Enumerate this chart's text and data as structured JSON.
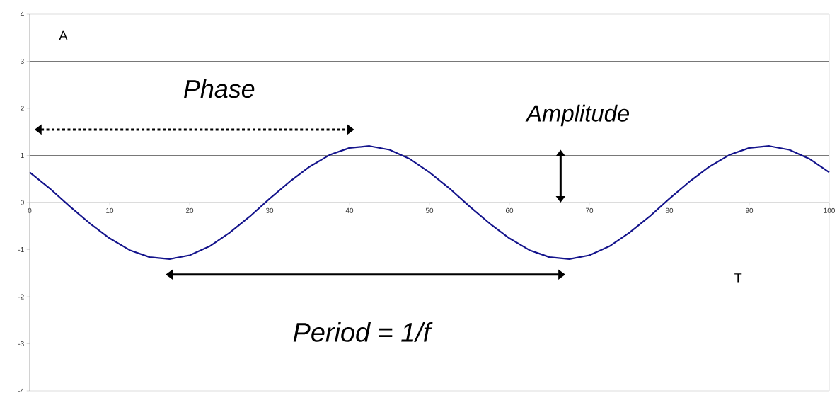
{
  "chart_data": {
    "type": "line",
    "x": [
      0,
      2.5,
      5,
      7.5,
      10,
      12.5,
      15,
      17.5,
      20,
      22.5,
      25,
      27.5,
      30,
      32.5,
      35,
      37.5,
      40,
      42.5,
      45,
      47.5,
      50,
      52.5,
      55,
      57.5,
      60,
      62.5,
      65,
      67.5,
      70,
      72.5,
      75,
      77.5,
      80,
      82.5,
      85,
      87.5,
      90,
      92.5,
      95,
      97.5,
      100
    ],
    "series": [
      {
        "color": "#14148c",
        "values": [
          0.64,
          0.3,
          -0.08,
          -0.44,
          -0.76,
          -1.01,
          -1.16,
          -1.2,
          -1.12,
          -0.93,
          -0.64,
          -0.3,
          0.08,
          0.44,
          0.76,
          1.01,
          1.16,
          1.2,
          1.12,
          0.93,
          0.64,
          0.3,
          -0.08,
          -0.44,
          -0.76,
          -1.01,
          -1.16,
          -1.2,
          -1.12,
          -0.93,
          -0.64,
          -0.3,
          0.08,
          0.44,
          0.76,
          1.01,
          1.16,
          1.2,
          1.12,
          0.93,
          0.64
        ]
      }
    ],
    "xlim": [
      0,
      100
    ],
    "xticks": [
      0,
      10,
      20,
      30,
      40,
      50,
      60,
      70,
      80,
      90,
      100
    ],
    "ylim": [
      -4,
      4
    ],
    "yticks": [
      -4,
      -3,
      -2,
      -1,
      0,
      1,
      2,
      3,
      4
    ],
    "ref_lines": [
      {
        "axis": "y",
        "value": 3,
        "color": "#555555"
      },
      {
        "axis": "y",
        "value": 1,
        "color": "#555555"
      }
    ],
    "annotations": [
      "A",
      "Phase",
      "Amplitude",
      "Period = 1/f",
      "T"
    ],
    "marker": "none",
    "line_style": "solid"
  }
}
